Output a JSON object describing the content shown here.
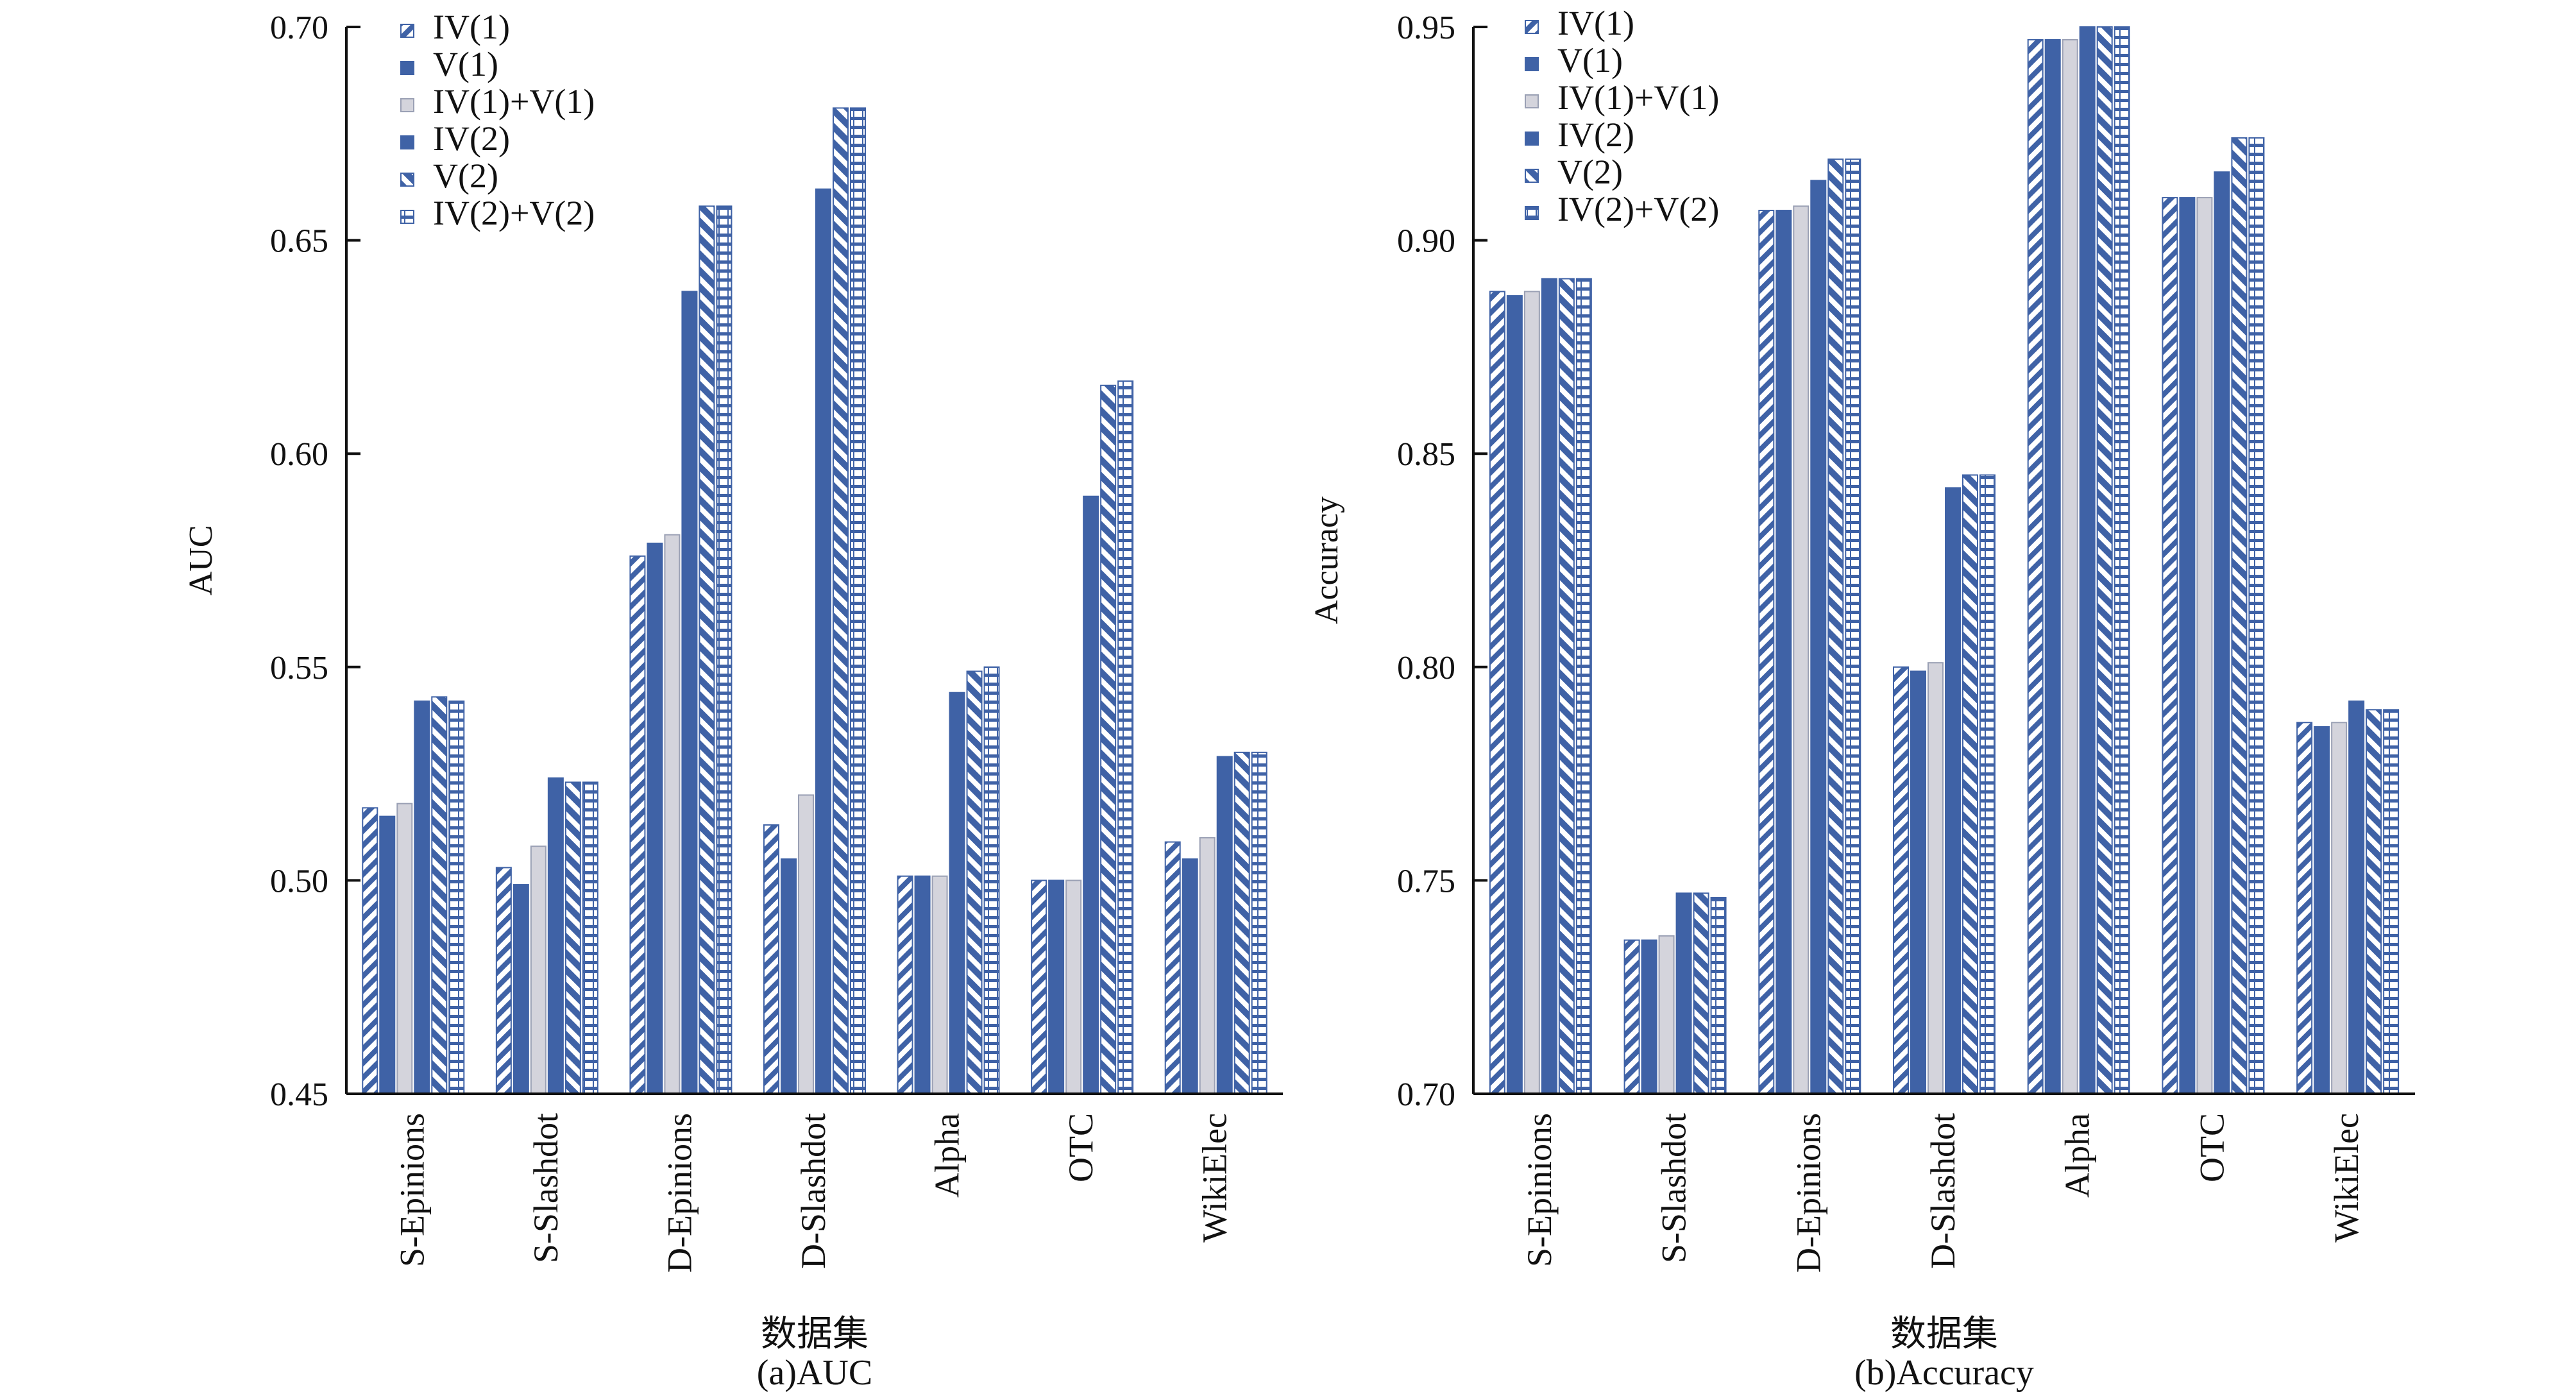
{
  "colors": {
    "primary": "#3f62a6",
    "light_gray": "#d4d4dc",
    "axis": "#111111",
    "background": "#ffffff"
  },
  "legend": [
    "IV(1)",
    "V(1)",
    "IV(1)+V(1)",
    "IV(2)",
    "V(2)",
    "IV(2)+V(2)"
  ],
  "series_styles": [
    {
      "name": "IV(1)",
      "pattern": "diagonal-stripe"
    },
    {
      "name": "V(1)",
      "pattern": "solid"
    },
    {
      "name": "IV(1)+V(1)",
      "pattern": "light-gray"
    },
    {
      "name": "IV(2)",
      "pattern": "solid"
    },
    {
      "name": "V(2)",
      "pattern": "diagonal-stripe"
    },
    {
      "name": "IV(2)+V(2)",
      "pattern": "brick"
    }
  ],
  "chart_data": [
    {
      "type": "bar",
      "caption": "(a)AUC",
      "xlabel": "数据集",
      "ylabel": "AUC",
      "ylim": [
        0.45,
        0.7
      ],
      "yticks": [
        "0.45",
        "0.50",
        "0.55",
        "0.60",
        "0.65",
        "0.70"
      ],
      "categories": [
        "S-Epinions",
        "S-Slashdot",
        "D-Epinions",
        "D-Slashdot",
        "Alpha",
        "OTC",
        "WikiElec"
      ],
      "series": [
        {
          "name": "IV(1)",
          "values": [
            0.517,
            0.503,
            0.576,
            0.513,
            0.501,
            0.5,
            0.509
          ]
        },
        {
          "name": "V(1)",
          "values": [
            0.515,
            0.499,
            0.579,
            0.505,
            0.501,
            0.5,
            0.505
          ]
        },
        {
          "name": "IV(1)+V(1)",
          "values": [
            0.518,
            0.508,
            0.581,
            0.52,
            0.501,
            0.5,
            0.51
          ]
        },
        {
          "name": "IV(2)",
          "values": [
            0.542,
            0.524,
            0.638,
            0.662,
            0.544,
            0.59,
            0.529
          ]
        },
        {
          "name": "V(2)",
          "values": [
            0.543,
            0.523,
            0.658,
            0.681,
            0.549,
            0.616,
            0.53
          ]
        },
        {
          "name": "IV(2)+V(2)",
          "values": [
            0.542,
            0.523,
            0.658,
            0.681,
            0.55,
            0.617,
            0.53
          ]
        }
      ],
      "grid": false,
      "legend_position": "top-left"
    },
    {
      "type": "bar",
      "caption": "(b)Accuracy",
      "xlabel": "数据集",
      "ylabel": "Accuracy",
      "ylim": [
        0.7,
        0.95
      ],
      "yticks": [
        "0.70",
        "0.75",
        "0.80",
        "0.85",
        "0.90",
        "0.95"
      ],
      "categories": [
        "S-Epinions",
        "S-Slashdot",
        "D-Epinions",
        "D-Slashdot",
        "Alpha",
        "OTC",
        "WikiElec"
      ],
      "series": [
        {
          "name": "IV(1)",
          "values": [
            0.888,
            0.736,
            0.907,
            0.8,
            0.947,
            0.91,
            0.787
          ]
        },
        {
          "name": "V(1)",
          "values": [
            0.887,
            0.736,
            0.907,
            0.799,
            0.947,
            0.91,
            0.786
          ]
        },
        {
          "name": "IV(1)+V(1)",
          "values": [
            0.888,
            0.737,
            0.908,
            0.801,
            0.947,
            0.91,
            0.787
          ]
        },
        {
          "name": "IV(2)",
          "values": [
            0.891,
            0.747,
            0.914,
            0.842,
            0.95,
            0.916,
            0.792
          ]
        },
        {
          "name": "V(2)",
          "values": [
            0.891,
            0.747,
            0.919,
            0.845,
            0.95,
            0.924,
            0.79
          ]
        },
        {
          "name": "IV(2)+V(2)",
          "values": [
            0.891,
            0.746,
            0.919,
            0.845,
            0.95,
            0.924,
            0.79
          ]
        }
      ],
      "grid": false,
      "legend_position": "top-left"
    }
  ]
}
